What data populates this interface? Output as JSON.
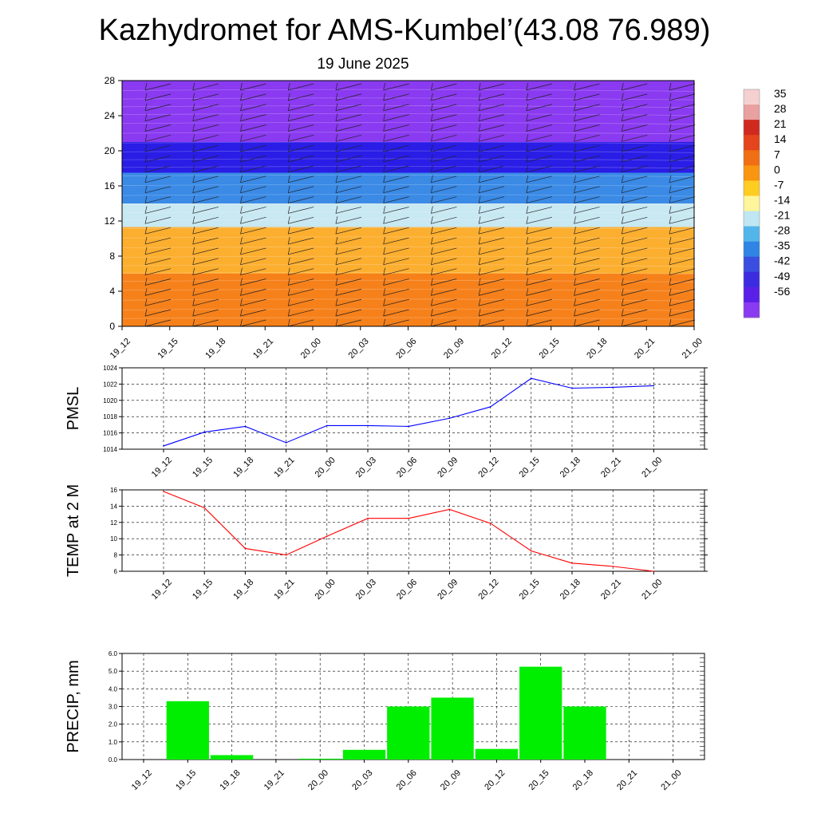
{
  "title": "Kazhydromet for AMS-Kumbel’(43.08 76.989)",
  "subtitle": "19 June 2025",
  "time_labels": [
    "19_12",
    "19_15",
    "19_18",
    "19_21",
    "20_00",
    "20_03",
    "20_06",
    "20_09",
    "20_12",
    "20_15",
    "20_18",
    "20_21",
    "21_00"
  ],
  "chart_data": [
    {
      "type": "heatmap",
      "name": "cross-section",
      "y_ticks": [
        "0",
        "4",
        "8",
        "12",
        "16",
        "20",
        "24",
        "28"
      ],
      "ylim": [
        0,
        28
      ],
      "colorbar_labels": [
        "35",
        "28",
        "21",
        "14",
        "7",
        "0",
        "-7",
        "-14",
        "-21",
        "-28",
        "-35",
        "-42",
        "-49",
        "-56"
      ],
      "colorbar_colors": [
        "#f5d0d0",
        "#e8a0a0",
        "#d02a20",
        "#e4451c",
        "#f06e14",
        "#f99510",
        "#ffcc22",
        "#fff59a",
        "#bfe6f2",
        "#52b6ea",
        "#2f84e4",
        "#3a4ee0",
        "#3c2ce0",
        "#5a20e8",
        "#8a3af0"
      ],
      "layers": [
        {
          "y_top": 28,
          "y_bottom": 21,
          "color": "#8a3af0"
        },
        {
          "y_top": 21,
          "y_bottom": 17.5,
          "color": "#2a1ee6"
        },
        {
          "y_top": 17.5,
          "y_bottom": 14,
          "color": "#3a8be6"
        },
        {
          "y_top": 14,
          "y_bottom": 11.3,
          "color": "#c8e8f2"
        },
        {
          "y_top": 11.3,
          "y_bottom": 6,
          "color": "#fcae30"
        },
        {
          "y_top": 6,
          "y_bottom": 0,
          "color": "#f6821c"
        }
      ]
    },
    {
      "type": "line",
      "name": "pmsl",
      "ylabel": "PMSL",
      "ylim": [
        1014,
        1024
      ],
      "y_ticks": [
        "1014",
        "1016",
        "1018",
        "1020",
        "1022",
        "1024"
      ],
      "values": [
        1014.4,
        1016.1,
        1016.8,
        1014.8,
        1016.9,
        1016.9,
        1016.8,
        1017.8,
        1019.2,
        1022.7,
        1021.5,
        1021.6,
        1021.8
      ],
      "color": "#0000ff"
    },
    {
      "type": "line",
      "name": "temp",
      "ylabel": "TEMP at 2 M",
      "ylim": [
        6,
        16
      ],
      "y_ticks": [
        "6",
        "8",
        "10",
        "12",
        "14",
        "16"
      ],
      "values": [
        15.8,
        13.8,
        8.8,
        8.0,
        10.3,
        12.5,
        12.5,
        13.6,
        11.9,
        8.5,
        7.0,
        6.6,
        6.0
      ],
      "color": "#ff0000"
    },
    {
      "type": "bar",
      "name": "precip",
      "ylabel": "PRECIP, mm",
      "ylim": [
        0,
        6
      ],
      "y_ticks": [
        "0.0",
        "1.0",
        "2.0",
        "3.0",
        "4.0",
        "5.0",
        "6.0"
      ],
      "categories": [
        "19_15",
        "19_18",
        "19_21",
        "20_00",
        "20_03",
        "20_06",
        "20_09",
        "20_12",
        "20_15",
        "20_18",
        "20_21"
      ],
      "values": [
        3.3,
        0.25,
        0.0,
        0.05,
        0.55,
        3.0,
        3.5,
        0.6,
        5.25,
        3.0,
        0.0
      ],
      "color": "#00ee00"
    }
  ]
}
